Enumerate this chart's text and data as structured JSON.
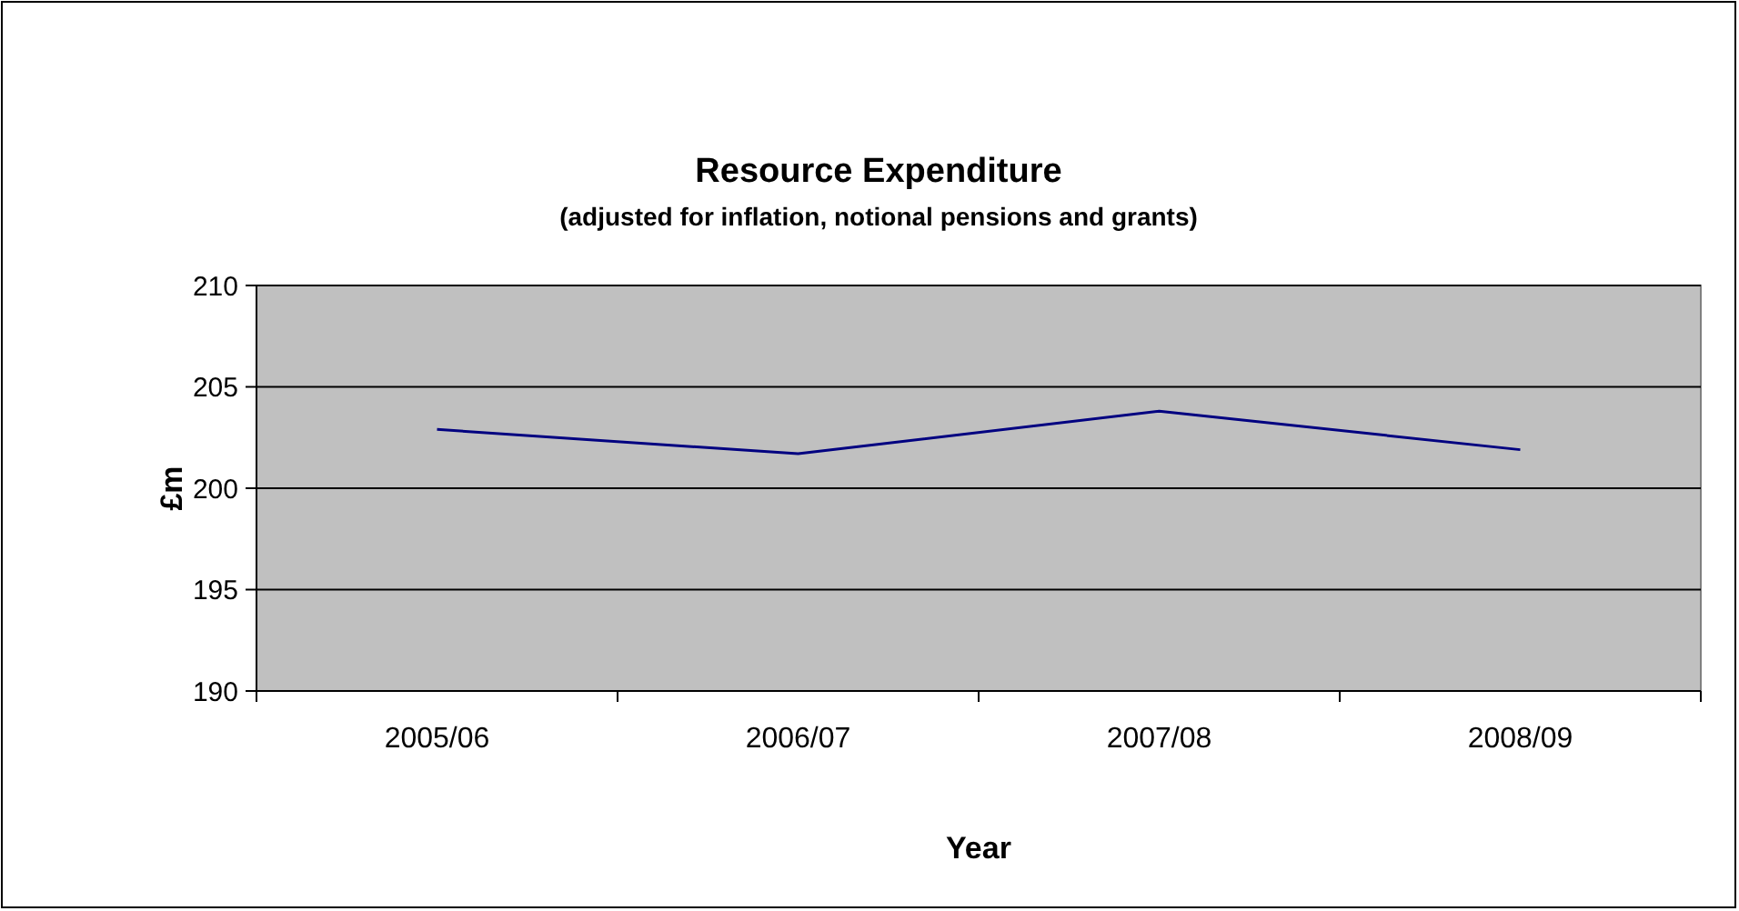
{
  "chart_data": {
    "type": "line",
    "title": "Resource Expenditure",
    "subtitle": "(adjusted for inflation, notional pensions and grants)",
    "xlabel": "Year",
    "ylabel": "£m",
    "categories": [
      "2005/06",
      "2006/07",
      "2007/08",
      "2008/09"
    ],
    "series": [
      {
        "color": "#000080",
        "values": [
          202.9,
          201.7,
          203.8,
          201.9
        ]
      }
    ],
    "ylim": [
      190,
      210
    ],
    "yticks": [
      190,
      195,
      200,
      205,
      210
    ],
    "grid": "y",
    "marker": "none",
    "line_style": "solid"
  }
}
